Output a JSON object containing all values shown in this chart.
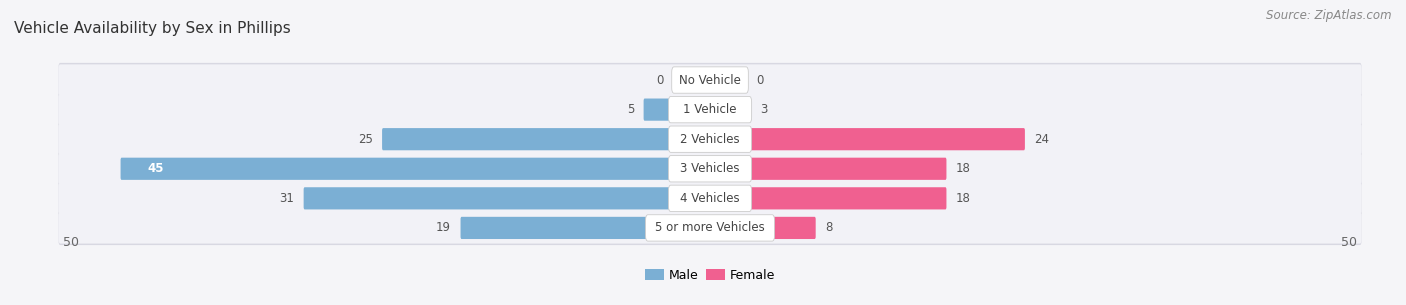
{
  "title": "Vehicle Availability by Sex in Phillips",
  "source": "Source: ZipAtlas.com",
  "categories": [
    "No Vehicle",
    "1 Vehicle",
    "2 Vehicles",
    "3 Vehicles",
    "4 Vehicles",
    "5 or more Vehicles"
  ],
  "male_values": [
    0,
    5,
    25,
    45,
    31,
    19
  ],
  "female_values": [
    0,
    3,
    24,
    18,
    18,
    8
  ],
  "male_color": "#7bafd4",
  "female_color": "#f06090",
  "male_label": "Male",
  "female_label": "Female",
  "xlim": 50,
  "fig_bg": "#f5f5f8",
  "row_bg": "#e8e8ee",
  "row_bg_inner": "#f0f0f5",
  "label_bg": "#ffffff",
  "title_fontsize": 11,
  "source_fontsize": 8.5,
  "value_fontsize": 8.5,
  "cat_fontsize": 8.5
}
